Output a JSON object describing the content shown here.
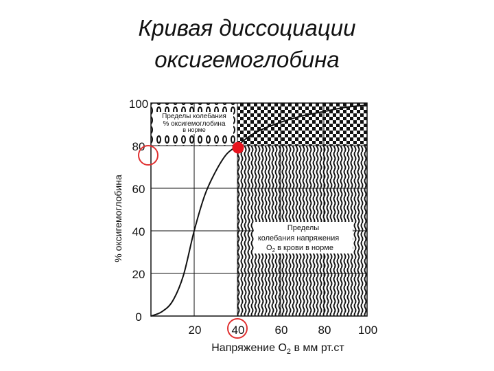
{
  "slide": {
    "title_line1": "Кривая диссоциации",
    "title_line2": "оксигемоглобина"
  },
  "chart_data": {
    "type": "line",
    "xlabel_prefix": "Напряжение О",
    "xlabel_sub": "2",
    "xlabel_suffix": " в мм рт.ст",
    "ylabel": "% оксигемоглобина",
    "xlim": [
      0,
      100
    ],
    "ylim": [
      0,
      100
    ],
    "x_ticks": [
      "20",
      "40",
      "60",
      "80",
      "100"
    ],
    "y_ticks": [
      "0",
      "20",
      "40",
      "60",
      "80",
      "100"
    ],
    "grid": true,
    "series": [
      {
        "x": [
          0,
          5,
          10,
          15,
          20,
          25,
          30,
          35,
          40,
          45,
          50,
          60,
          70,
          80,
          90,
          100
        ],
        "y": [
          0,
          2,
          7,
          19,
          40,
          57,
          68,
          76,
          80,
          84,
          87,
          91,
          94,
          96,
          98,
          99
        ]
      }
    ],
    "highlight_point": {
      "x": 40,
      "y": 80
    },
    "circled_ticks": {
      "x": 40,
      "y": 80
    },
    "shaded_regions": [
      {
        "pattern": "stripes",
        "x": [
          40,
          100
        ],
        "y": [
          0,
          100
        ]
      },
      {
        "pattern": "checker",
        "x": [
          0,
          100
        ],
        "y": [
          80,
          100
        ]
      }
    ],
    "annotations": {
      "saturation_box": [
        "Пределы колебания",
        "% оксигемоглобина",
        "в норме"
      ],
      "tension_box_lines": [
        "Пределы",
        "колебания напряжения"
      ],
      "tension_box_last_prefix": "О",
      "tension_box_last_sub": "2",
      "tension_box_last_suffix": " в крови в норме"
    },
    "colors": {
      "curve": "#111111",
      "highlight": "#e8141e",
      "circle": "#e03030"
    }
  }
}
